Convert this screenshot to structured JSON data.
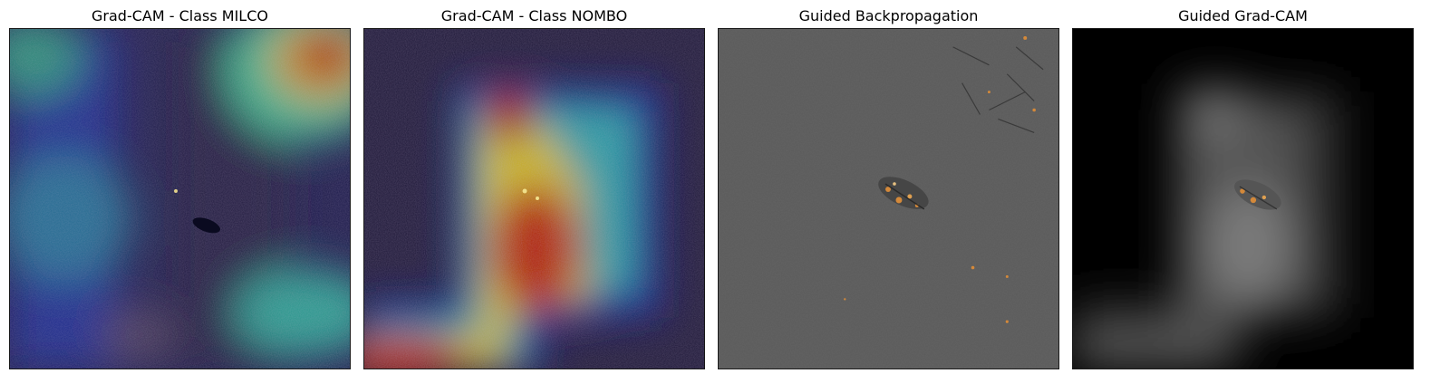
{
  "figure": {
    "panels": [
      {
        "title": "Grad-CAM - Class MILCO"
      },
      {
        "title": "Grad-CAM - Class NOMBO"
      },
      {
        "title": "Guided Backpropagation"
      },
      {
        "title": "Guided Grad-CAM"
      }
    ]
  },
  "colors": {
    "sonar_base": "#1e1838",
    "jet_blue": "#0a0a8a",
    "jet_cyan": "#2aa7a0",
    "jet_yellow": "#c9b52a",
    "jet_red": "#a50f0a",
    "gray_bg": "#595959",
    "black_bg": "#000000",
    "artifact_orange": "#d4893a"
  }
}
